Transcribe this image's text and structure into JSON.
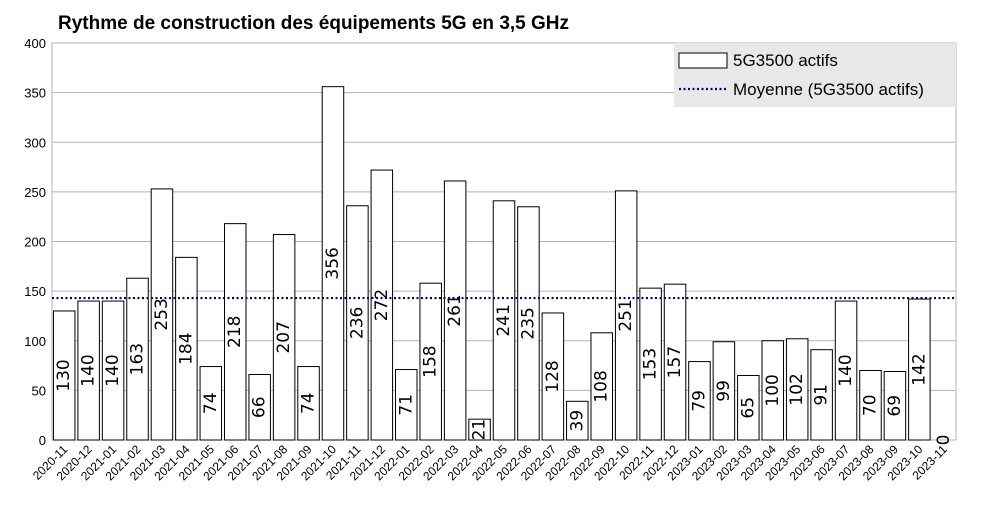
{
  "chart_data": {
    "type": "bar",
    "title": "Rythme de construction des équipements 5G en 3,5 GHz",
    "xlabel": "",
    "ylabel": "",
    "ylim": [
      0,
      400
    ],
    "yticks": [
      0,
      50,
      100,
      150,
      200,
      250,
      300,
      350,
      400
    ],
    "grid": true,
    "legend_position": "top-right",
    "categories": [
      "2020-11",
      "2020-12",
      "2021-01",
      "2021-02",
      "2021-03",
      "2021-04",
      "2021-05",
      "2021-06",
      "2021-07",
      "2021-08",
      "2021-09",
      "2021-10",
      "2021-11",
      "2021-12",
      "2022-01",
      "2022-02",
      "2022-03",
      "2022-04",
      "2022-05",
      "2022-06",
      "2022-07",
      "2022-08",
      "2022-09",
      "2022-10",
      "2022-11",
      "2022-12",
      "2023-01",
      "2023-02",
      "2023-03",
      "2023-04",
      "2023-05",
      "2023-06",
      "2023-07",
      "2023-08",
      "2023-09",
      "2023-10",
      "2023-11"
    ],
    "series": [
      {
        "name": "5G3500 actifs",
        "kind": "bar",
        "color": "#ffffff",
        "values": [
          130,
          140,
          140,
          163,
          253,
          184,
          74,
          218,
          66,
          207,
          74,
          356,
          236,
          272,
          71,
          158,
          261,
          21,
          241,
          235,
          128,
          39,
          108,
          251,
          153,
          157,
          79,
          99,
          65,
          100,
          102,
          91,
          140,
          70,
          69,
          142,
          0
        ]
      },
      {
        "name": "Moyenne (5G3500 actifs)",
        "kind": "line",
        "style": "dotted",
        "color": "#000080",
        "value": 143
      }
    ]
  }
}
